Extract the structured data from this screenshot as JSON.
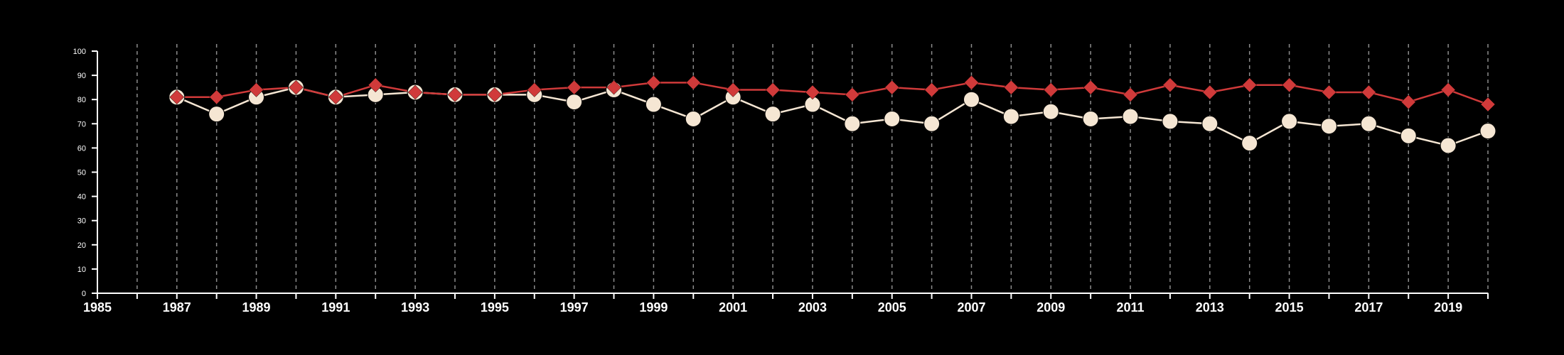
{
  "colors": {
    "background": "#000000",
    "axis": "#ffffff",
    "grid": "#8c8c8c",
    "series_white": "#f5e6d3",
    "series_red": "#d03a3a"
  },
  "chart_data": {
    "type": "line",
    "title": "",
    "xlabel": "",
    "ylabel": "",
    "xlim": [
      1985,
      2020
    ],
    "ylim": [
      0,
      100
    ],
    "x_ticks": [
      1985,
      1987,
      1989,
      1991,
      1993,
      1995,
      1997,
      1999,
      2001,
      2003,
      2005,
      2007,
      2009,
      2011,
      2013,
      2015,
      2017,
      2019
    ],
    "x_tick_labels": [
      "1985",
      "1987",
      "1989",
      "1991",
      "1993",
      "1995",
      "1997",
      "1999",
      "2001",
      "2003",
      "2005",
      "2007",
      "2009",
      "2011",
      "2013",
      "2015",
      "2017",
      "2019"
    ],
    "y_ticks": [
      0,
      10,
      20,
      30,
      40,
      50,
      60,
      70,
      80,
      90,
      100
    ],
    "y_tick_labels": [
      "0",
      "10",
      "20",
      "30",
      "40",
      "50",
      "60",
      "70",
      "80",
      "90",
      "100"
    ],
    "grid": "vertical dashed at every year",
    "legend": "none",
    "x": [
      1987,
      1988,
      1989,
      1990,
      1991,
      1992,
      1993,
      1994,
      1995,
      1996,
      1997,
      1998,
      1999,
      2000,
      2001,
      2002,
      2003,
      2004,
      2005,
      2006,
      2007,
      2008,
      2009,
      2010,
      2011,
      2012,
      2013,
      2014,
      2015,
      2016,
      2017,
      2018,
      2019,
      2020
    ],
    "series": [
      {
        "marker": "circle",
        "color": "#f5e6d3",
        "values": [
          81,
          74,
          81,
          85,
          81,
          82,
          83,
          82,
          82,
          82,
          79,
          84,
          78,
          72,
          81,
          74,
          78,
          70,
          72,
          70,
          80,
          73,
          75,
          72,
          73,
          71,
          70,
          62,
          71,
          69,
          70,
          65,
          61,
          67
        ]
      },
      {
        "marker": "diamond",
        "color": "#d03a3a",
        "values": [
          81,
          81,
          84,
          85,
          81,
          86,
          83,
          82,
          82,
          84,
          85,
          85,
          87,
          87,
          84,
          84,
          83,
          82,
          85,
          84,
          87,
          85,
          84,
          85,
          82,
          86,
          83,
          86,
          86,
          83,
          83,
          79,
          84,
          78
        ]
      }
    ]
  }
}
